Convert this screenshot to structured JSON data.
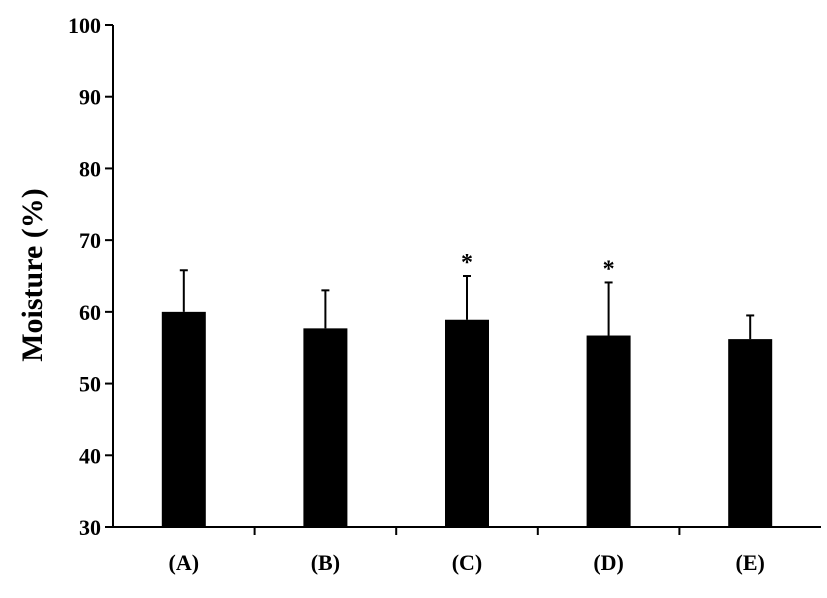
{
  "chart_data": {
    "type": "bar",
    "ylabel": "Moisture (%)",
    "ylim": [
      30,
      100
    ],
    "yticks": [
      30,
      40,
      50,
      60,
      70,
      80,
      90,
      100
    ],
    "yticks_text": [
      "30",
      "40",
      "50",
      "60",
      "70",
      "80",
      "90",
      "100"
    ],
    "categories": [
      "(A)",
      "(B)",
      "(C)",
      "(D)",
      "(E)"
    ],
    "values": [
      60.0,
      57.7,
      58.9,
      56.7,
      56.2
    ],
    "error_upper": [
      5.8,
      5.3,
      6.1,
      7.4,
      3.3
    ],
    "significance": [
      "",
      "",
      "*",
      "*",
      ""
    ],
    "grid": false,
    "bar_color": "#000000"
  }
}
